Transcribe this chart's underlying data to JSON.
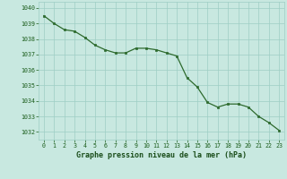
{
  "x": [
    0,
    1,
    2,
    3,
    4,
    5,
    6,
    7,
    8,
    9,
    10,
    11,
    12,
    13,
    14,
    15,
    16,
    17,
    18,
    19,
    20,
    21,
    22,
    23
  ],
  "y": [
    1039.5,
    1039.0,
    1038.6,
    1038.5,
    1038.1,
    1037.6,
    1037.3,
    1037.1,
    1037.1,
    1037.4,
    1037.4,
    1037.3,
    1037.1,
    1036.9,
    1035.5,
    1034.9,
    1033.9,
    1033.6,
    1033.8,
    1033.8,
    1033.6,
    1033.0,
    1032.6,
    1032.1
  ],
  "line_color": "#2d6a2d",
  "marker_color": "#2d6a2d",
  "bg_color": "#c8e8e0",
  "grid_color": "#9ecec4",
  "axis_label_color": "#1a4d1a",
  "tick_label_color": "#1a5c1a",
  "xlabel": "Graphe pression niveau de la mer (hPa)",
  "ylim_min": 1031.5,
  "ylim_max": 1040.4,
  "xlim_min": -0.5,
  "xlim_max": 23.5,
  "xticks": [
    0,
    1,
    2,
    3,
    4,
    5,
    6,
    7,
    8,
    9,
    10,
    11,
    12,
    13,
    14,
    15,
    16,
    17,
    18,
    19,
    20,
    21,
    22,
    23
  ],
  "yticks": [
    1032,
    1033,
    1034,
    1035,
    1036,
    1037,
    1038,
    1039,
    1040
  ]
}
